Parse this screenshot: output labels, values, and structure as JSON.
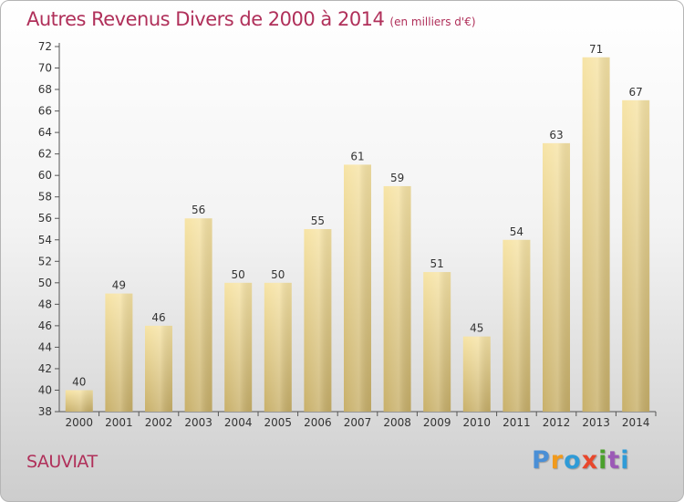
{
  "chart_data": {
    "type": "bar",
    "title": "Autres Revenus Divers de 2000 à 2014",
    "subtitle": "(en milliers d'€)",
    "xlabel": "",
    "ylabel": "",
    "categories": [
      "2000",
      "2001",
      "2002",
      "2003",
      "2004",
      "2005",
      "2006",
      "2007",
      "2008",
      "2009",
      "2010",
      "2011",
      "2012",
      "2013",
      "2014"
    ],
    "values": [
      40,
      49,
      46,
      56,
      50,
      50,
      55,
      61,
      59,
      51,
      45,
      54,
      63,
      71,
      67
    ],
    "ylim": [
      38,
      72
    ],
    "yticks": [
      38,
      40,
      42,
      44,
      46,
      48,
      50,
      52,
      54,
      56,
      58,
      60,
      62,
      64,
      66,
      68,
      70,
      72
    ],
    "grid": false,
    "bar_color_light": "#f7e4a6",
    "bar_color_dark": "#c8b06a"
  },
  "footer": {
    "commune": "SAUVIAT",
    "brand": "Proxiti",
    "brand_colors": [
      "#4a8fd6",
      "#f19a1c",
      "#2f9bd7",
      "#e8472c",
      "#4aa02c",
      "#9b59b6",
      "#2f9bd7"
    ]
  },
  "colors": {
    "title": "#b0305a",
    "axis": "#555555",
    "text": "#333333"
  }
}
